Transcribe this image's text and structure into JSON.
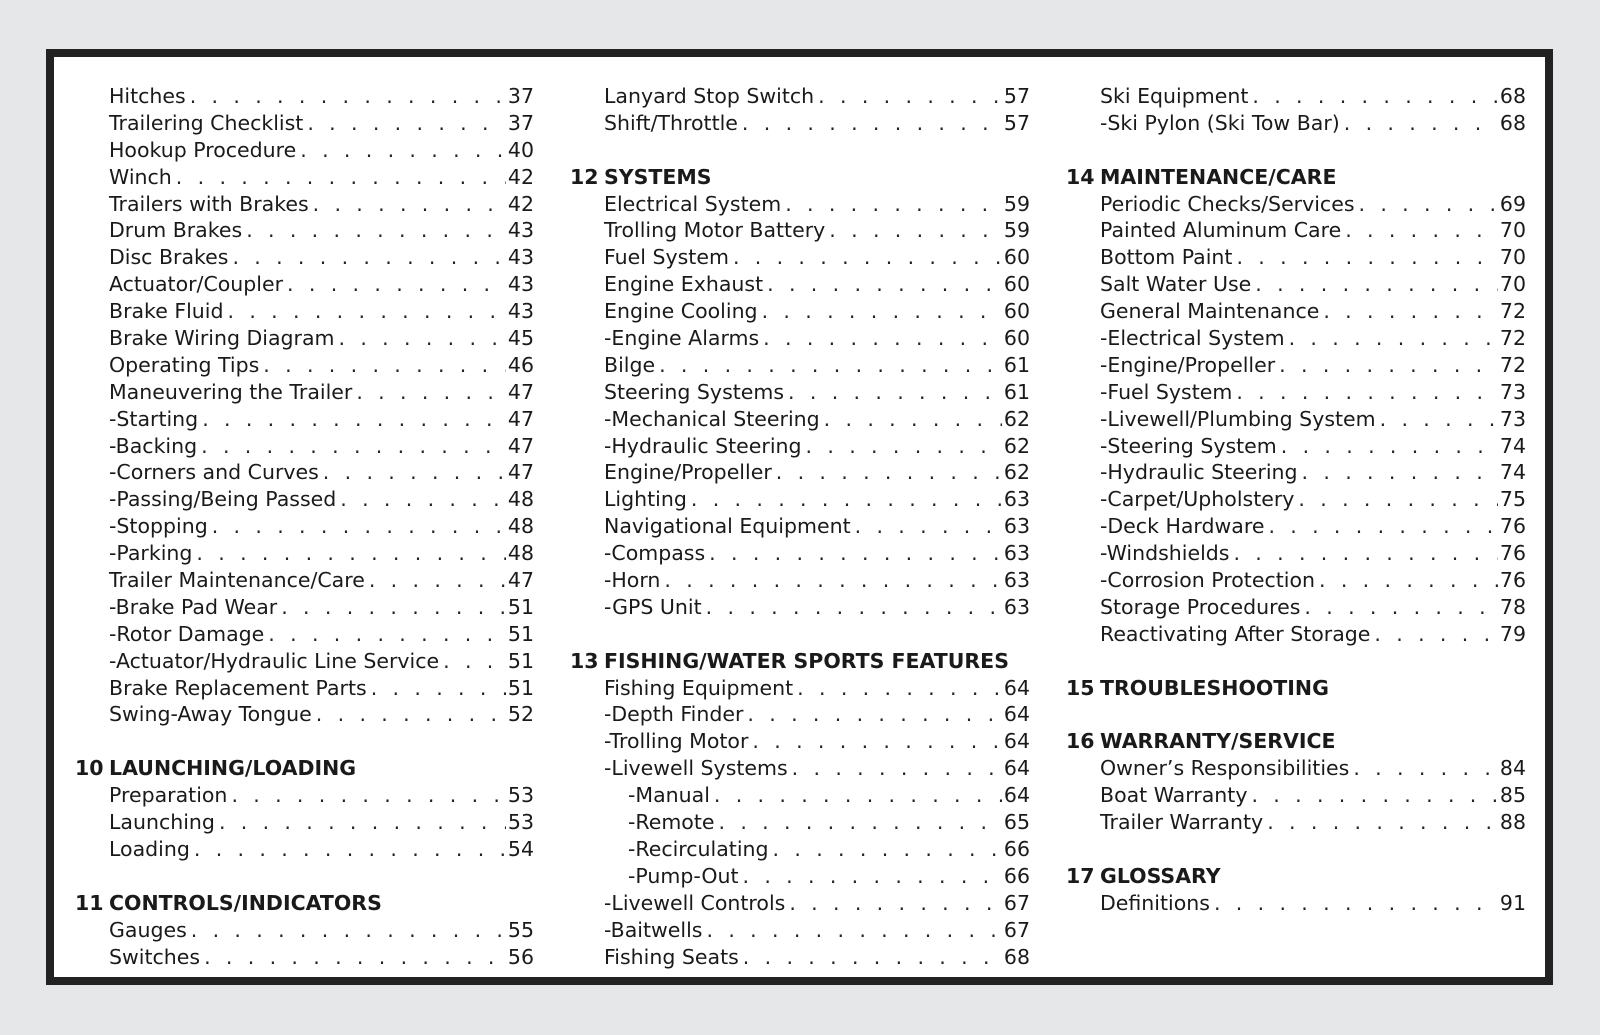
{
  "columns": [
    [
      {
        "label": "Hitches",
        "page": "37"
      },
      {
        "label": "Trailering Checklist",
        "page": "37"
      },
      {
        "label": "Hookup Procedure",
        "page": "40"
      },
      {
        "label": "Winch",
        "page": "42"
      },
      {
        "label": "Trailers with Brakes",
        "page": "42"
      },
      {
        "label": "Drum Brakes",
        "page": "43"
      },
      {
        "label": "Disc Brakes",
        "page": "43"
      },
      {
        "label": "Actuator/Coupler",
        "page": "43"
      },
      {
        "label": "Brake Fluid",
        "page": "43"
      },
      {
        "label": "Brake Wiring Diagram",
        "page": "45"
      },
      {
        "label": "Operating Tips",
        "page": "46"
      },
      {
        "label": "Maneuvering the Trailer",
        "page": "47"
      },
      {
        "label": "-Starting",
        "page": "47"
      },
      {
        "label": "-Backing",
        "page": "47"
      },
      {
        "label": "-Corners and Curves",
        "page": "47"
      },
      {
        "label": "-Passing/Being Passed",
        "page": "48"
      },
      {
        "label": "-Stopping",
        "page": "48"
      },
      {
        "label": "-Parking",
        "page": "48"
      },
      {
        "label": "Trailer Maintenance/Care",
        "page": "47"
      },
      {
        "label": "-Brake Pad Wear",
        "page": "51"
      },
      {
        "label": "-Rotor Damage",
        "page": "51"
      },
      {
        "label": "-Actuator/Hydraulic Line Service",
        "page": "51"
      },
      {
        "label": "Brake Replacement Parts",
        "page": "51"
      },
      {
        "label": "Swing-Away Tongue",
        "page": "52"
      },
      {
        "section": "10",
        "title": "LAUNCHING/LOADING"
      },
      {
        "label": "Preparation",
        "page": "53"
      },
      {
        "label": "Launching",
        "page": "53"
      },
      {
        "label": "Loading",
        "page": "54"
      },
      {
        "section": "11",
        "title": "CONTROLS/INDICATORS"
      },
      {
        "label": "Gauges",
        "page": "55"
      },
      {
        "label": "Switches",
        "page": "56"
      }
    ],
    [
      {
        "label": "Lanyard Stop Switch",
        "page": "57"
      },
      {
        "label": "Shift/Throttle",
        "page": "57"
      },
      {
        "section": "12",
        "title": "SYSTEMS"
      },
      {
        "label": "Electrical System",
        "page": "59"
      },
      {
        "label": "Trolling Motor Battery",
        "page": "59"
      },
      {
        "label": "Fuel System",
        "page": "60"
      },
      {
        "label": "Engine Exhaust",
        "page": "60"
      },
      {
        "label": "Engine Cooling",
        "page": "60"
      },
      {
        "label": "-Engine Alarms",
        "page": "60"
      },
      {
        "label": "Bilge",
        "page": "61"
      },
      {
        "label": "Steering Systems",
        "page": "61"
      },
      {
        "label": "-Mechanical Steering",
        "page": "62"
      },
      {
        "label": "-Hydraulic Steering",
        "page": "62"
      },
      {
        "label": "Engine/Propeller",
        "page": "62"
      },
      {
        "label": "Lighting",
        "page": "63"
      },
      {
        "label": "Navigational Equipment",
        "page": "63"
      },
      {
        "label": "-Compass",
        "page": "63"
      },
      {
        "label": "-Horn",
        "page": "63"
      },
      {
        "label": "-GPS Unit",
        "page": "63"
      },
      {
        "section": "13",
        "title": "FISHING/WATER SPORTS FEATURES"
      },
      {
        "label": "Fishing Equipment",
        "page": "64"
      },
      {
        "label": "-Depth Finder",
        "page": "64"
      },
      {
        "label": "-Trolling Motor",
        "page": "64"
      },
      {
        "label": "-Livewell Systems",
        "page": "64"
      },
      {
        "label": "-Manual",
        "page": "64",
        "sub": true
      },
      {
        "label": "-Remote",
        "page": "65",
        "sub": true
      },
      {
        "label": "-Recirculating",
        "page": "66",
        "sub": true
      },
      {
        "label": "-Pump-Out",
        "page": "66",
        "sub": true
      },
      {
        "label": "-Livewell Controls",
        "page": "67"
      },
      {
        "label": "-Baitwells",
        "page": "67"
      },
      {
        "label": "Fishing Seats",
        "page": "68"
      }
    ],
    [
      {
        "label": "Ski Equipment",
        "page": "68"
      },
      {
        "label": "-Ski Pylon (Ski Tow Bar)",
        "page": "68"
      },
      {
        "section": "14",
        "title": "MAINTENANCE/CARE"
      },
      {
        "label": "Periodic Checks/Services",
        "page": "69"
      },
      {
        "label": "Painted Aluminum Care",
        "page": "70"
      },
      {
        "label": "Bottom Paint",
        "page": "70"
      },
      {
        "label": "Salt Water Use",
        "page": "70"
      },
      {
        "label": "General Maintenance",
        "page": "72"
      },
      {
        "label": "-Electrical System",
        "page": "72"
      },
      {
        "label": "-Engine/Propeller",
        "page": "72"
      },
      {
        "label": "-Fuel System",
        "page": "73"
      },
      {
        "label": "-Livewell/Plumbing System",
        "page": "73"
      },
      {
        "label": "-Steering System",
        "page": "74"
      },
      {
        "label": "-Hydraulic Steering",
        "page": "74"
      },
      {
        "label": "-Carpet/Upholstery",
        "page": "75"
      },
      {
        "label": "-Deck Hardware",
        "page": "76"
      },
      {
        "label": "-Windshields",
        "page": "76"
      },
      {
        "label": "-Corrosion Protection",
        "page": "76"
      },
      {
        "label": "Storage Procedures",
        "page": "78"
      },
      {
        "label": "Reactivating After Storage",
        "page": "79"
      },
      {
        "section": "15",
        "title": "TROUBLESHOOTING"
      },
      {
        "section": "16",
        "title": "WARRANTY/SERVICE"
      },
      {
        "label": "Owner’s Responsibilities",
        "page": "84"
      },
      {
        "label": "Boat Warranty",
        "page": "85"
      },
      {
        "label": "Trailer Warranty",
        "page": "88"
      },
      {
        "section": "17",
        "title": "GLOSSARY"
      },
      {
        "label": "Definitions",
        "page": "91"
      }
    ]
  ]
}
